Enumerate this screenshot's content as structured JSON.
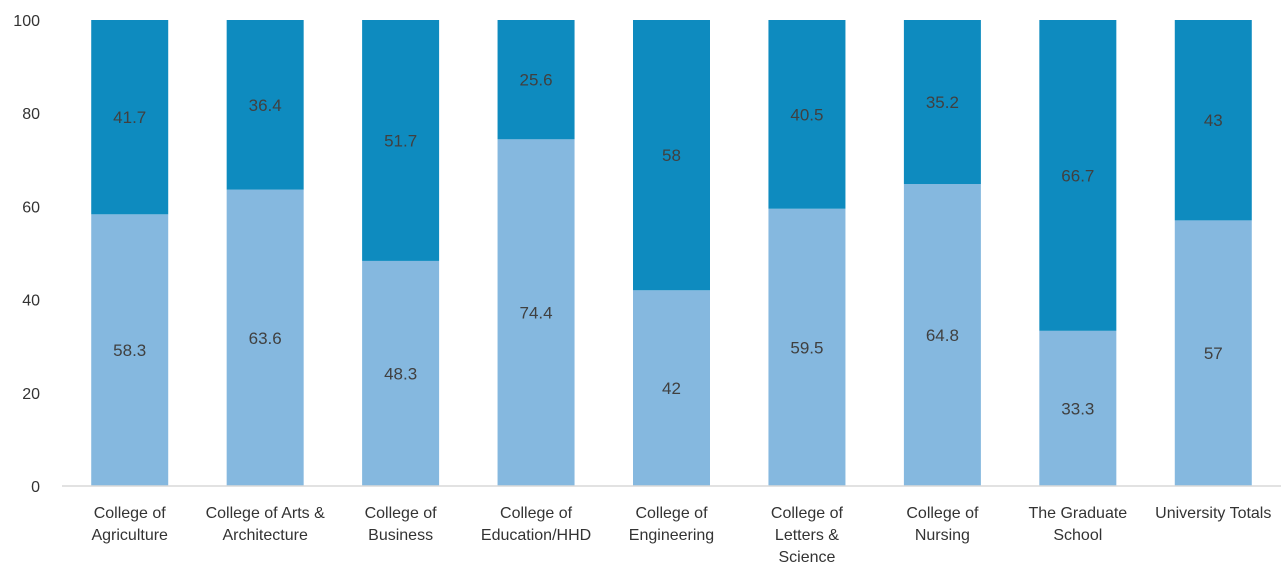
{
  "chart_data": {
    "type": "bar",
    "stacked": true,
    "categories": [
      "College of Agriculture",
      "College of Arts & Architecture",
      "College of Business",
      "College of Education/HHD",
      "College of Engineering",
      "College of Letters & Science",
      "College of Nursing",
      "The Graduate School",
      "University Totals"
    ],
    "category_label_lines": [
      [
        "College of",
        "Agriculture"
      ],
      [
        "College of Arts &",
        "Architecture"
      ],
      [
        "College of",
        "Business"
      ],
      [
        "College of",
        "Education/HHD"
      ],
      [
        "College of",
        "Engineering"
      ],
      [
        "College of",
        "Letters &",
        "Science"
      ],
      [
        "College of",
        "Nursing"
      ],
      [
        "The Graduate",
        "School"
      ],
      [
        "University Totals"
      ]
    ],
    "series": [
      {
        "values": [
          58.3,
          63.6,
          48.3,
          74.4,
          42,
          59.5,
          64.8,
          33.3,
          57
        ],
        "labels": [
          "58.3",
          "63.6",
          "48.3",
          "74.4",
          "42",
          "59.5",
          "64.8",
          "33.3",
          "57"
        ],
        "color": "#85b8df"
      },
      {
        "values": [
          41.7,
          36.4,
          51.7,
          25.6,
          58,
          40.5,
          35.2,
          66.7,
          43
        ],
        "labels": [
          "41.7",
          "36.4",
          "51.7",
          "25.6",
          "58",
          "40.5",
          "35.2",
          "66.7",
          "43"
        ],
        "color": "#0e8bbf"
      }
    ],
    "ylim": [
      0,
      100
    ],
    "yticks": [
      0,
      20,
      40,
      60,
      80,
      100
    ],
    "ytick_labels": [
      "0",
      "20",
      "40",
      "60",
      "80",
      "100"
    ],
    "grid": false,
    "legend": "none",
    "title": "",
    "xlabel": "",
    "ylabel": "",
    "axis_color": "#d9d9d9",
    "text_color": "#333333"
  }
}
